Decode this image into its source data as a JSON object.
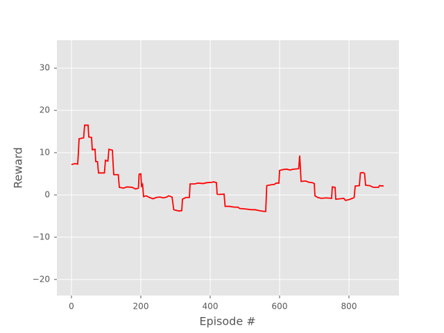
{
  "chart_data": {
    "type": "line",
    "xlabel": "Episode #",
    "ylabel": "Reward",
    "x": [
      0,
      10,
      18,
      20,
      22,
      35,
      38,
      48,
      50,
      58,
      60,
      68,
      70,
      75,
      78,
      95,
      98,
      105,
      108,
      118,
      120,
      122,
      135,
      138,
      150,
      160,
      175,
      185,
      193,
      195,
      200,
      202,
      205,
      208,
      215,
      225,
      235,
      245,
      255,
      265,
      275,
      280,
      290,
      295,
      310,
      318,
      320,
      330,
      340,
      342,
      355,
      365,
      380,
      390,
      405,
      410,
      418,
      420,
      425,
      440,
      443,
      455,
      470,
      480,
      485,
      500,
      520,
      530,
      540,
      555,
      560,
      563,
      575,
      585,
      590,
      598,
      600,
      610,
      620,
      630,
      640,
      655,
      658,
      660,
      662,
      675,
      685,
      695,
      700,
      702,
      710,
      720,
      735,
      750,
      752,
      760,
      762,
      775,
      785,
      790,
      800,
      810,
      815,
      818,
      830,
      833,
      840,
      845,
      848,
      860,
      870,
      885,
      888,
      900
    ],
    "series": [
      {
        "color": "#ff0000",
        "values": [
          7.2,
          7.4,
          7.3,
          10,
          13.3,
          13.5,
          16.5,
          16.5,
          13.7,
          13.6,
          10.7,
          10.8,
          7.9,
          7.9,
          5.2,
          5.2,
          8.2,
          8,
          10.8,
          10.6,
          7.5,
          4.8,
          4.8,
          1.8,
          1.6,
          1.9,
          1.8,
          1.4,
          1.6,
          4.9,
          5,
          2.1,
          2.5,
          -0.4,
          -0.2,
          -0.6,
          -0.9,
          -0.6,
          -0.5,
          -0.7,
          -0.5,
          -0.2,
          -0.5,
          -3.5,
          -3.8,
          -3.7,
          -1,
          -0.6,
          -0.6,
          2.6,
          2.6,
          2.8,
          2.7,
          2.9,
          3,
          3.1,
          2.9,
          0.2,
          0.1,
          0.2,
          -2.7,
          -2.7,
          -2.9,
          -2.9,
          -3.2,
          -3.3,
          -3.5,
          -3.5,
          -3.7,
          -3.9,
          -3.9,
          2.2,
          2.4,
          2.5,
          2.8,
          2.8,
          5.8,
          6,
          6.1,
          5.9,
          6.1,
          6.2,
          9.3,
          6.3,
          3.2,
          3.3,
          3,
          2.9,
          2.7,
          -0.2,
          -0.6,
          -0.8,
          -0.7,
          -0.8,
          1.9,
          1.8,
          -1,
          -0.9,
          -0.8,
          -1.3,
          -1.1,
          -0.8,
          -0.6,
          2.1,
          2.2,
          5.2,
          5.3,
          5.1,
          2.3,
          2.2,
          1.8,
          1.8,
          2.2,
          2.1
        ]
      }
    ],
    "xlim": [
      -42,
      944
    ],
    "ylim": [
      -23.8,
      36.6
    ],
    "xticks": [
      0,
      200,
      400,
      600,
      800
    ],
    "yticks": [
      {
        "value": -20,
        "label": "−20"
      },
      {
        "value": -10,
        "label": "−10"
      },
      0,
      10,
      20,
      30
    ],
    "grid": true,
    "background": "#e5e5e5"
  }
}
